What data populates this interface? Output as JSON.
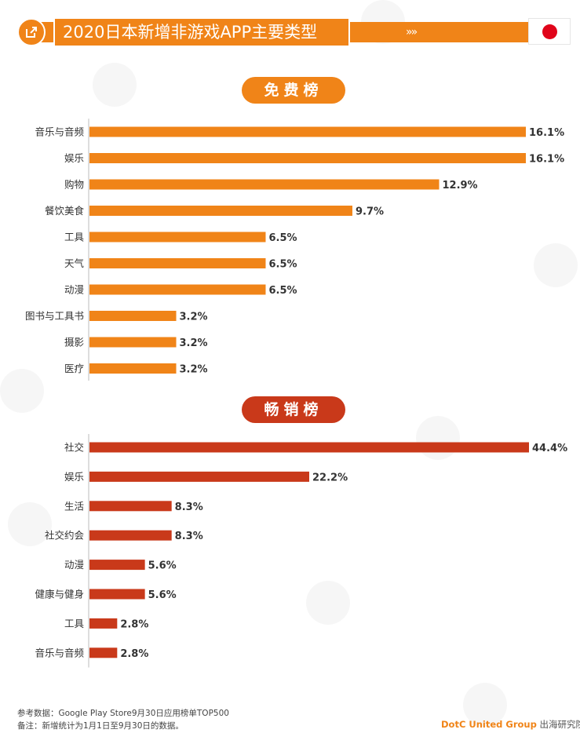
{
  "header": {
    "title": "2020日本新增非游戏APP主要类型",
    "chevrons": "»»",
    "share_icon": "share-out-icon",
    "flag": "japan-flag"
  },
  "colors": {
    "free_bar": "#f08418",
    "paid_bar": "#c9391a",
    "accent": "#f08418"
  },
  "chart_data": [
    {
      "type": "bar",
      "orientation": "horizontal",
      "title": "免费榜",
      "categories": [
        "音乐与音频",
        "娱乐",
        "购物",
        "餐饮美食",
        "工具",
        "天气",
        "动漫",
        "图书与工具书",
        "摄影",
        "医疗"
      ],
      "values": [
        16.1,
        16.1,
        12.9,
        9.7,
        6.5,
        6.5,
        6.5,
        3.2,
        3.2,
        3.2
      ],
      "value_labels": [
        "16.1%",
        "16.1%",
        "12.9%",
        "9.7%",
        "6.5%",
        "6.5%",
        "6.5%",
        "3.2%",
        "3.2%",
        "3.2%"
      ],
      "unit": "%",
      "xlim": [
        0,
        16.1
      ],
      "grid": false,
      "legend": "none"
    },
    {
      "type": "bar",
      "orientation": "horizontal",
      "title": "畅销榜",
      "categories": [
        "社交",
        "娱乐",
        "生活",
        "社交约会",
        "动漫",
        "健康与健身",
        "工具",
        "音乐与音频"
      ],
      "values": [
        44.4,
        22.2,
        8.3,
        8.3,
        5.6,
        5.6,
        2.8,
        2.8
      ],
      "value_labels": [
        "44.4%",
        "22.2%",
        "8.3%",
        "8.3%",
        "5.6%",
        "5.6%",
        "2.8%",
        "2.8%"
      ],
      "unit": "%",
      "xlim": [
        0,
        44.4
      ],
      "grid": false,
      "legend": "none"
    }
  ],
  "footer": {
    "source": "参考数据：Google Play Store9月30日应用榜单TOP500",
    "note": "备注：新增统计为1月1日至9月30日的数据。",
    "brand_name": "DotC United Group",
    "brand_suffix": "出海研究院"
  }
}
